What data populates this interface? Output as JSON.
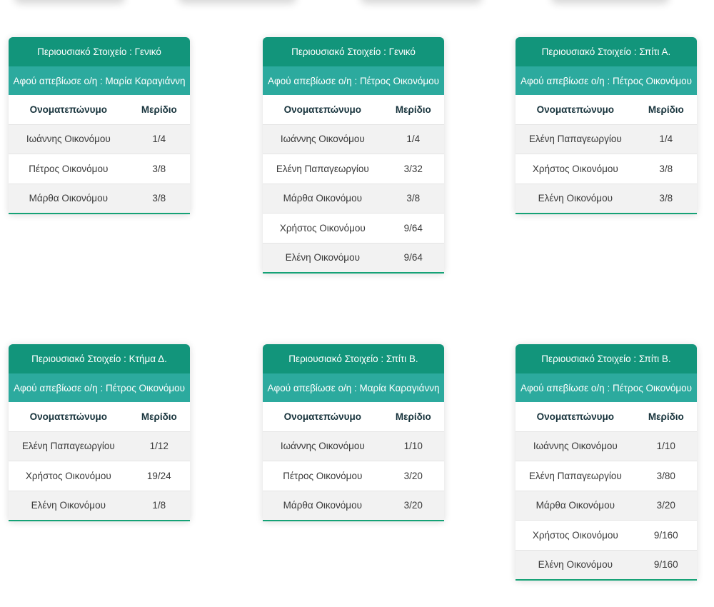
{
  "page": {
    "background": "#ffffff"
  },
  "colors": {
    "header_teal": "#12957b",
    "subheader_teal": "#2caa9e",
    "bottom_border_teal": "#15a276",
    "alt_row_gray": "#f2f2f2",
    "header_text": "#ffffff",
    "column_header_text": "#17333c",
    "cell_text": "#3a3a3a"
  },
  "columns": {
    "name": "Ονοματεπώνυμο",
    "share": "Μερίδιο"
  },
  "tables": [
    {
      "title": "Περιουσιακό Στοιχείο : Γενικό",
      "subtitle": "Αφού απεβίωσε ο/η : Μαρία Καραγιάννη",
      "rows": [
        {
          "name": "Ιωάννης Οικονόμου",
          "share": "1/4"
        },
        {
          "name": "Πέτρος Οικονόμου",
          "share": "3/8"
        },
        {
          "name": "Μάρθα Οικονόμου",
          "share": "3/8"
        }
      ]
    },
    {
      "title": "Περιουσιακό Στοιχείο : Γενικό",
      "subtitle": "Αφού απεβίωσε ο/η : Πέτρος Οικονόμου",
      "rows": [
        {
          "name": "Ιωάννης Οικονόμου",
          "share": "1/4"
        },
        {
          "name": "Ελένη Παπαγεωργίου",
          "share": "3/32"
        },
        {
          "name": "Μάρθα Οικονόμου",
          "share": "3/8"
        },
        {
          "name": "Χρήστος Οικονόμου",
          "share": "9/64"
        },
        {
          "name": "Ελένη Οικονόμου",
          "share": "9/64"
        }
      ]
    },
    {
      "title": "Περιουσιακό Στοιχείο : Σπίτι Α.",
      "subtitle": "Αφού απεβίωσε ο/η : Πέτρος Οικονόμου",
      "rows": [
        {
          "name": "Ελένη Παπαγεωργίου",
          "share": "1/4"
        },
        {
          "name": "Χρήστος Οικονόμου",
          "share": "3/8"
        },
        {
          "name": "Ελένη Οικονόμου",
          "share": "3/8"
        }
      ]
    },
    {
      "title": "Περιουσιακό Στοιχείο : Κτήμα Δ.",
      "subtitle": "Αφού απεβίωσε ο/η : Πέτρος Οικονόμου",
      "rows": [
        {
          "name": "Ελένη Παπαγεωργίου",
          "share": "1/12"
        },
        {
          "name": "Χρήστος Οικονόμου",
          "share": "19/24"
        },
        {
          "name": "Ελένη Οικονόμου",
          "share": "1/8"
        }
      ]
    },
    {
      "title": "Περιουσιακό Στοιχείο : Σπίτι Β.",
      "subtitle": "Αφού απεβίωσε ο/η : Μαρία Καραγιάννη",
      "rows": [
        {
          "name": "Ιωάννης Οικονόμου",
          "share": "1/10"
        },
        {
          "name": "Πέτρος Οικονόμου",
          "share": "3/20"
        },
        {
          "name": "Μάρθα Οικονόμου",
          "share": "3/20"
        }
      ]
    },
    {
      "title": "Περιουσιακό Στοιχείο : Σπίτι Β.",
      "subtitle": "Αφού απεβίωσε ο/η : Πέτρος Οικονόμου",
      "rows": [
        {
          "name": "Ιωάννης Οικονόμου",
          "share": "1/10"
        },
        {
          "name": "Ελένη Παπαγεωργίου",
          "share": "3/80"
        },
        {
          "name": "Μάρθα Οικονόμου",
          "share": "3/20"
        },
        {
          "name": "Χρήστος Οικονόμου",
          "share": "9/160"
        },
        {
          "name": "Ελένη Οικονόμου",
          "share": "9/160"
        }
      ]
    }
  ]
}
